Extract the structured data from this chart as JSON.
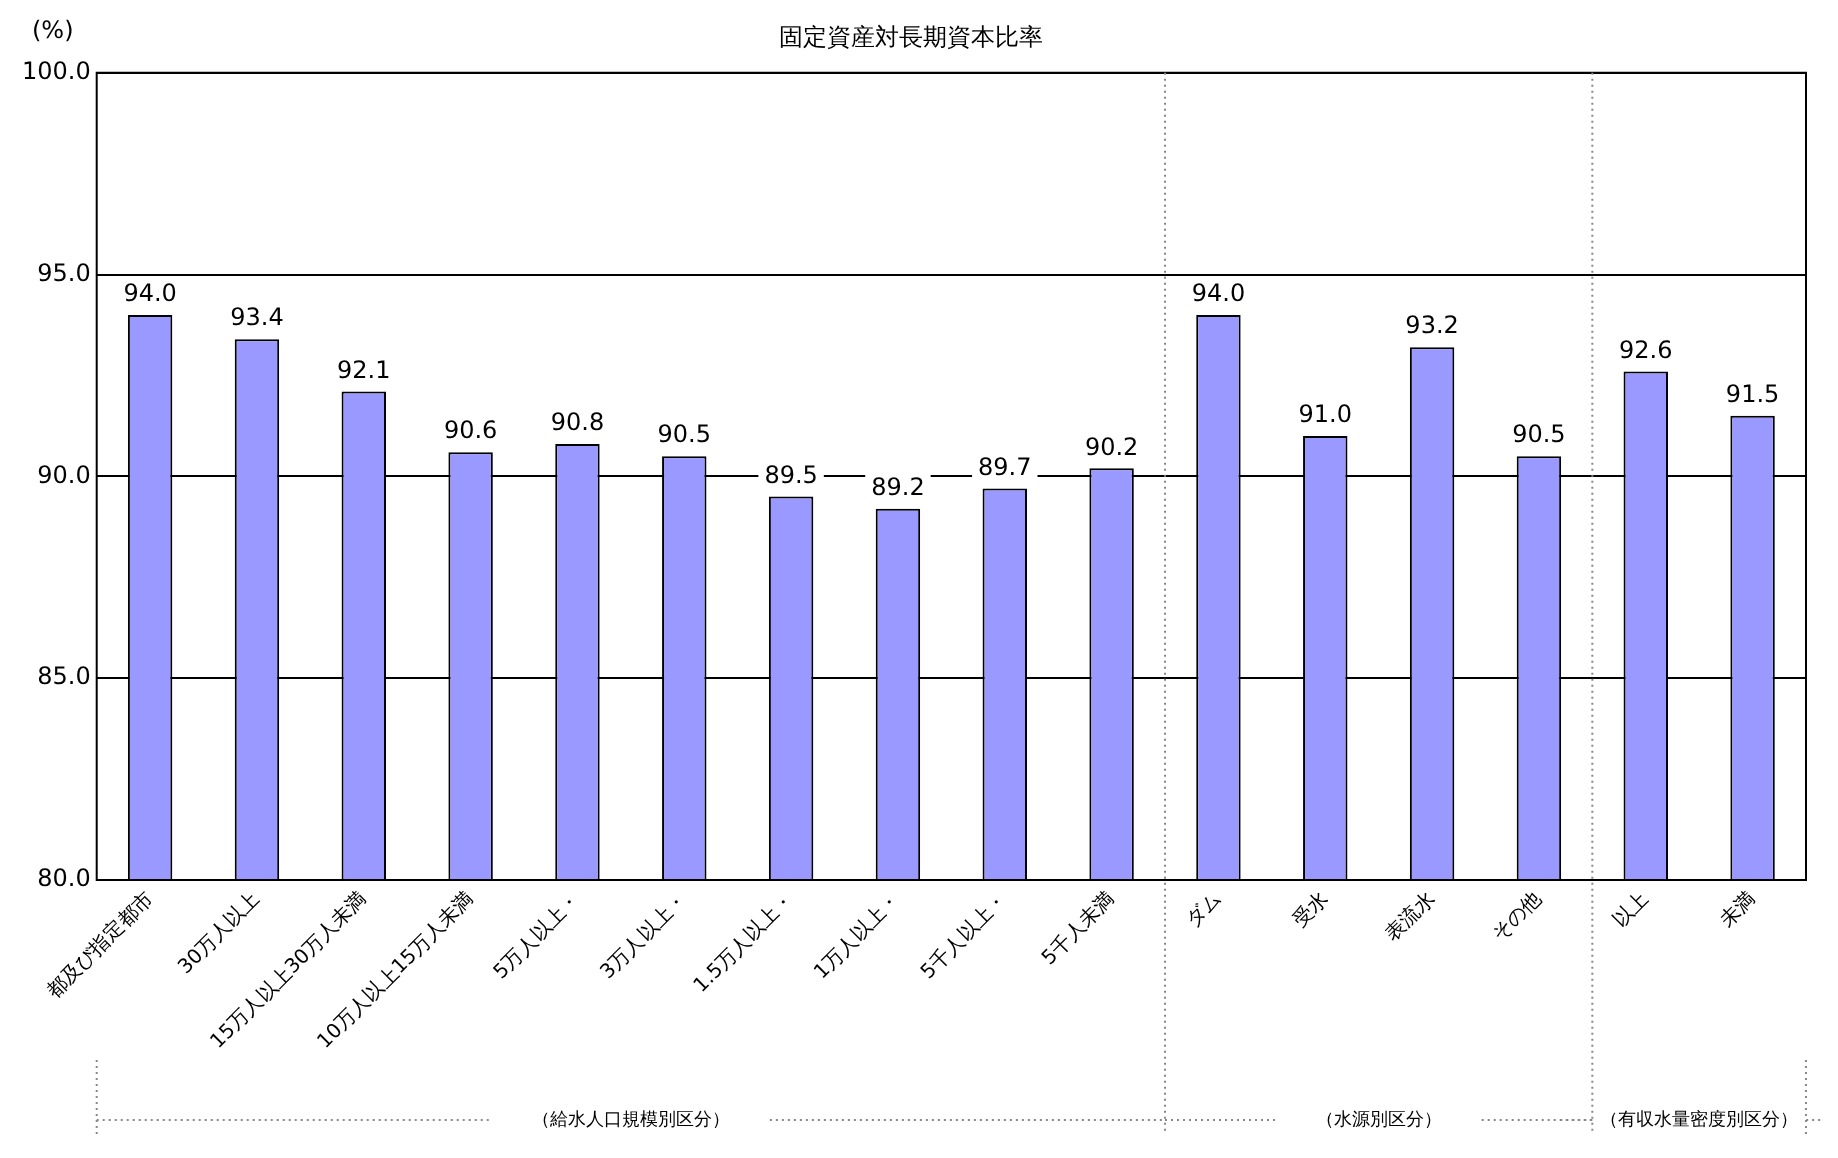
{
  "chart_data": {
    "type": "bar",
    "title": "固定資産対長期資本比率",
    "ylabel": "(%)",
    "categories": [
      "都及び指定都市",
      "30万人以上",
      "15万人以上30万人未満",
      "10万人以上15万人未満",
      "5万人以上・",
      "3万人以上・",
      "1.5万人以上・",
      "1万人以上・",
      "5千人以上・",
      "5千人未満",
      "ダム",
      "受水",
      "表流水",
      "その他",
      "以上",
      "未満"
    ],
    "values": [
      94.0,
      93.4,
      92.1,
      90.6,
      90.8,
      90.5,
      89.5,
      89.2,
      89.7,
      90.2,
      94.0,
      91.0,
      93.2,
      90.5,
      92.6,
      91.5
    ],
    "value_labels": [
      "94.0",
      "93.4",
      "92.1",
      "90.6",
      "90.8",
      "90.5",
      "89.5",
      "89.2",
      "89.7",
      "90.2",
      "94.0",
      "91.0",
      "93.2",
      "90.5",
      "92.6",
      "91.5"
    ],
    "color": "#9999ff",
    "ylim": [
      80,
      100
    ],
    "yticks": [
      {
        "value": 80,
        "label": "80.0"
      },
      {
        "value": 85,
        "label": "85.0"
      },
      {
        "value": 90,
        "label": "90.0"
      },
      {
        "value": 95,
        "label": "95.0"
      },
      {
        "value": 100,
        "label": "100.0"
      }
    ],
    "grid": "y",
    "legend": false,
    "annotations": [
      "（給水人口規模別区分）",
      "（水源別区分）",
      "（有収水量密度別区分）"
    ]
  }
}
